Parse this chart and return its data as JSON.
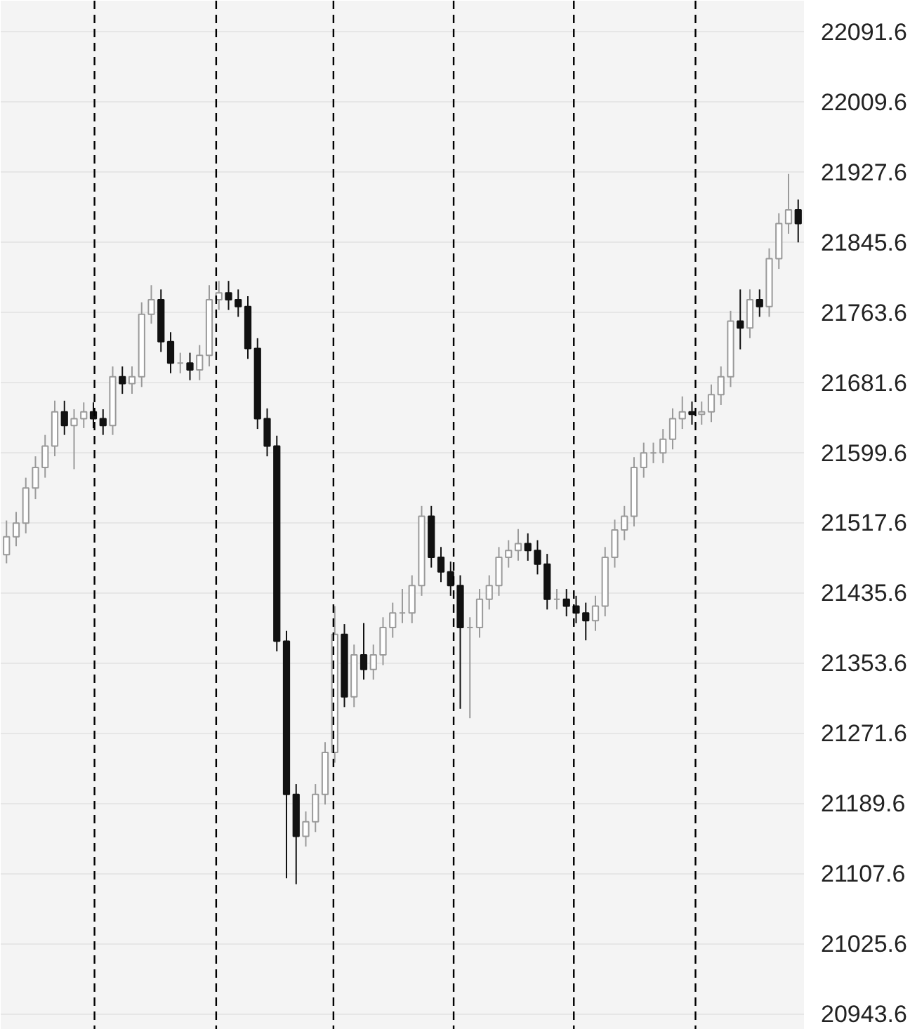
{
  "chart_data": {
    "type": "candlestick",
    "categories": [
      null,
      null,
      null,
      null,
      null,
      null,
      null,
      null,
      null,
      null,
      null,
      null,
      null,
      null,
      null,
      null,
      null,
      null,
      null,
      null,
      null,
      null,
      null,
      null,
      null,
      null,
      null,
      null,
      null,
      null,
      null,
      null,
      null,
      null,
      null,
      null,
      null,
      null,
      null,
      null,
      null,
      null,
      null,
      null,
      null,
      null,
      null,
      null,
      null,
      null,
      null,
      null,
      null,
      null,
      null,
      null,
      null,
      null,
      null,
      null,
      null,
      null,
      null,
      null,
      null,
      null,
      null,
      null,
      null,
      null,
      null,
      null,
      null,
      null,
      null,
      null,
      null,
      null,
      null,
      null,
      null,
      null,
      null
    ],
    "ohlc": [
      [
        21480,
        21520,
        21470,
        21501
      ],
      [
        21501,
        21530,
        21490,
        21517
      ],
      [
        21517,
        21570,
        21505,
        21558
      ],
      [
        21558,
        21595,
        21545,
        21582
      ],
      [
        21582,
        21620,
        21570,
        21607
      ],
      [
        21607,
        21660,
        21595,
        21647
      ],
      [
        21647,
        21660,
        21620,
        21631
      ],
      [
        21631,
        21650,
        21580,
        21639
      ],
      [
        21639,
        21658,
        21628,
        21647
      ],
      [
        21647,
        21658,
        21628,
        21639
      ],
      [
        21639,
        21650,
        21620,
        21631
      ],
      [
        21631,
        21700,
        21620,
        21688
      ],
      [
        21688,
        21700,
        21668,
        21680
      ],
      [
        21680,
        21700,
        21668,
        21688
      ],
      [
        21688,
        21775,
        21676,
        21761
      ],
      [
        21761,
        21795,
        21750,
        21778
      ],
      [
        21778,
        21790,
        21717,
        21729
      ],
      [
        21729,
        21740,
        21692,
        21704
      ],
      [
        21704,
        21716,
        21692,
        21704
      ],
      [
        21704,
        21716,
        21684,
        21696
      ],
      [
        21696,
        21725,
        21684,
        21713
      ],
      [
        21713,
        21795,
        21700,
        21778
      ],
      [
        21778,
        21800,
        21766,
        21786
      ],
      [
        21786,
        21800,
        21766,
        21778
      ],
      [
        21778,
        21790,
        21758,
        21770
      ],
      [
        21770,
        21782,
        21709,
        21721
      ],
      [
        21721,
        21733,
        21627,
        21639
      ],
      [
        21639,
        21651,
        21595,
        21607
      ],
      [
        21607,
        21619,
        21367,
        21379
      ],
      [
        21379,
        21391,
        21102,
        21200
      ],
      [
        21200,
        21212,
        21095,
        21151
      ],
      [
        21151,
        21180,
        21139,
        21168
      ],
      [
        21168,
        21212,
        21156,
        21200
      ],
      [
        21200,
        21261,
        21188,
        21249
      ],
      [
        21249,
        21420,
        21237,
        21387
      ],
      [
        21387,
        21399,
        21302,
        21314
      ],
      [
        21314,
        21375,
        21302,
        21363
      ],
      [
        21363,
        21400,
        21334,
        21346
      ],
      [
        21346,
        21375,
        21334,
        21363
      ],
      [
        21363,
        21407,
        21351,
        21395
      ],
      [
        21395,
        21424,
        21383,
        21412
      ],
      [
        21412,
        21440,
        21400,
        21412
      ],
      [
        21412,
        21456,
        21400,
        21444
      ],
      [
        21444,
        21537,
        21432,
        21525
      ],
      [
        21525,
        21537,
        21465,
        21477
      ],
      [
        21477,
        21489,
        21448,
        21460
      ],
      [
        21460,
        21472,
        21432,
        21444
      ],
      [
        21444,
        21456,
        21300,
        21395
      ],
      [
        21395,
        21407,
        21289,
        21395
      ],
      [
        21395,
        21440,
        21383,
        21428
      ],
      [
        21428,
        21456,
        21416,
        21444
      ],
      [
        21444,
        21489,
        21432,
        21477
      ],
      [
        21477,
        21497,
        21465,
        21485
      ],
      [
        21485,
        21510,
        21473,
        21493
      ],
      [
        21493,
        21505,
        21473,
        21485
      ],
      [
        21485,
        21497,
        21457,
        21469
      ],
      [
        21469,
        21481,
        21416,
        21428
      ],
      [
        21428,
        21440,
        21416,
        21428
      ],
      [
        21428,
        21440,
        21408,
        21420
      ],
      [
        21420,
        21432,
        21400,
        21412
      ],
      [
        21412,
        21424,
        21380,
        21403
      ],
      [
        21403,
        21432,
        21391,
        21420
      ],
      [
        21420,
        21489,
        21408,
        21477
      ],
      [
        21477,
        21521,
        21465,
        21509
      ],
      [
        21509,
        21537,
        21497,
        21525
      ],
      [
        21525,
        21594,
        21513,
        21582
      ],
      [
        21582,
        21611,
        21570,
        21599
      ],
      [
        21599,
        21611,
        21587,
        21599
      ],
      [
        21599,
        21627,
        21587,
        21615
      ],
      [
        21615,
        21651,
        21603,
        21639
      ],
      [
        21639,
        21665,
        21627,
        21647
      ],
      [
        21647,
        21659,
        21632,
        21644
      ],
      [
        21644,
        21659,
        21632,
        21647
      ],
      [
        21647,
        21679,
        21635,
        21667
      ],
      [
        21667,
        21700,
        21655,
        21688
      ],
      [
        21688,
        21765,
        21676,
        21753
      ],
      [
        21753,
        21790,
        21720,
        21745
      ],
      [
        21745,
        21790,
        21733,
        21778
      ],
      [
        21778,
        21790,
        21758,
        21770
      ],
      [
        21770,
        21838,
        21758,
        21826
      ],
      [
        21826,
        21879,
        21814,
        21867
      ],
      [
        21867,
        21925,
        21855,
        21883
      ],
      [
        21883,
        21895,
        21845,
        21867
      ]
    ],
    "ylim": [
      20925,
      22127.4
    ],
    "yticks": [
      {
        "value": 22091.6,
        "label": "22091.6"
      },
      {
        "value": 22009.6,
        "label": "22009.6"
      },
      {
        "value": 21927.6,
        "label": "21927.6"
      },
      {
        "value": 21845.6,
        "label": "21845.6"
      },
      {
        "value": 21763.6,
        "label": "21763.6"
      },
      {
        "value": 21681.6,
        "label": "21681.6"
      },
      {
        "value": 21599.6,
        "label": "21599.6"
      },
      {
        "value": 21517.6,
        "label": "21517.6"
      },
      {
        "value": 21435.6,
        "label": "21435.6"
      },
      {
        "value": 21353.6,
        "label": "21353.6"
      },
      {
        "value": 21271.6,
        "label": "21271.6"
      },
      {
        "value": 21189.6,
        "label": "21189.6"
      },
      {
        "value": 21107.6,
        "label": "21107.6"
      },
      {
        "value": 21025.6,
        "label": "21025.6"
      },
      {
        "value": 20943.6,
        "label": "20943.6"
      }
    ],
    "grid": "y",
    "tick_labels": "y"
  }
}
